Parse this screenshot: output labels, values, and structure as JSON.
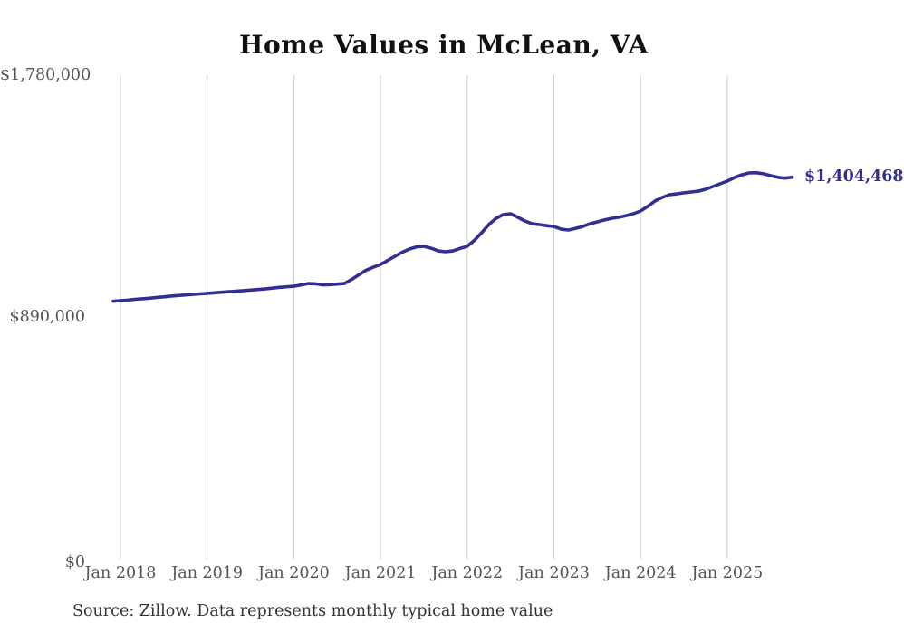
{
  "title": "Home Values in McLean, VA",
  "source_note": "Source: Zillow. Data represents monthly typical home value",
  "colors": {
    "background": "#ffffff",
    "title_text": "#111111",
    "axis_text": "#555555",
    "source_text": "#333333",
    "grid": "#cccccc",
    "line": "#332e91"
  },
  "chart_data": {
    "type": "line",
    "title": "Home Values in McLean, VA",
    "xlabel": "",
    "ylabel": "",
    "ylim": [
      0,
      1780000
    ],
    "grid": "vertical-only",
    "legend": "none",
    "latest_value": 1404468,
    "latest_value_label": "$1,404,468",
    "y_ticks": [
      {
        "label": "$0",
        "value": 0
      },
      {
        "label": "$890,000",
        "value": 890000
      },
      {
        "label": "$1,780,000",
        "value": 1780000
      }
    ],
    "x_ticks": [
      {
        "label": "Jan 2018",
        "month_index": 1
      },
      {
        "label": "Jan 2019",
        "month_index": 13
      },
      {
        "label": "Jan 2020",
        "month_index": 25
      },
      {
        "label": "Jan 2021",
        "month_index": 37
      },
      {
        "label": "Jan 2022",
        "month_index": 49
      },
      {
        "label": "Jan 2023",
        "month_index": 61
      },
      {
        "label": "Jan 2024",
        "month_index": 73
      },
      {
        "label": "Jan 2025",
        "month_index": 85
      }
    ],
    "series": [
      {
        "name": "Monthly typical home value",
        "months": [
          "2017-12",
          "2018-01",
          "2018-02",
          "2018-03",
          "2018-04",
          "2018-05",
          "2018-06",
          "2018-07",
          "2018-08",
          "2018-09",
          "2018-10",
          "2018-11",
          "2018-12",
          "2019-01",
          "2019-02",
          "2019-03",
          "2019-04",
          "2019-05",
          "2019-06",
          "2019-07",
          "2019-08",
          "2019-09",
          "2019-10",
          "2019-11",
          "2019-12",
          "2020-01",
          "2020-02",
          "2020-03",
          "2020-04",
          "2020-05",
          "2020-06",
          "2020-07",
          "2020-08",
          "2020-09",
          "2020-10",
          "2020-11",
          "2020-12",
          "2021-01",
          "2021-02",
          "2021-03",
          "2021-04",
          "2021-05",
          "2021-06",
          "2021-07",
          "2021-08",
          "2021-09",
          "2021-10",
          "2021-11",
          "2021-12",
          "2022-01",
          "2022-02",
          "2022-03",
          "2022-04",
          "2022-05",
          "2022-06",
          "2022-07",
          "2022-08",
          "2022-09",
          "2022-10",
          "2022-11",
          "2022-12",
          "2023-01",
          "2023-02",
          "2023-03",
          "2023-04",
          "2023-05",
          "2023-06",
          "2023-07",
          "2023-08",
          "2023-09",
          "2023-10",
          "2023-11",
          "2023-12",
          "2024-01",
          "2024-02",
          "2024-03",
          "2024-04",
          "2024-05",
          "2024-06",
          "2024-07",
          "2024-08",
          "2024-09",
          "2024-10",
          "2024-11",
          "2024-12",
          "2025-01",
          "2025-02",
          "2025-03",
          "2025-04",
          "2025-05",
          "2025-06",
          "2025-07",
          "2025-08",
          "2025-09",
          "2025-10"
        ],
        "values": [
          948000,
          950000,
          952000,
          955000,
          957000,
          959000,
          962000,
          964000,
          967000,
          969000,
          971000,
          973000,
          975000,
          977000,
          979000,
          981000,
          983000,
          985000,
          987000,
          989000,
          991000,
          993000,
          996000,
          999000,
          1001000,
          1003000,
          1008000,
          1013000,
          1012000,
          1008000,
          1009000,
          1011000,
          1013000,
          1028000,
          1045000,
          1062000,
          1073000,
          1083000,
          1098000,
          1113000,
          1128000,
          1140000,
          1148000,
          1150000,
          1143000,
          1133000,
          1130000,
          1133000,
          1142000,
          1150000,
          1172000,
          1200000,
          1230000,
          1253000,
          1267000,
          1270000,
          1257000,
          1243000,
          1233000,
          1230000,
          1226000,
          1223000,
          1213000,
          1210000,
          1216000,
          1223000,
          1233000,
          1240000,
          1247000,
          1253000,
          1257000,
          1263000,
          1270000,
          1280000,
          1297000,
          1317000,
          1330000,
          1340000,
          1343000,
          1347000,
          1350000,
          1353000,
          1360000,
          1370000,
          1380000,
          1390000,
          1403000,
          1413000,
          1420000,
          1421000,
          1417000,
          1410000,
          1404000,
          1401000,
          1404468
        ]
      }
    ]
  }
}
